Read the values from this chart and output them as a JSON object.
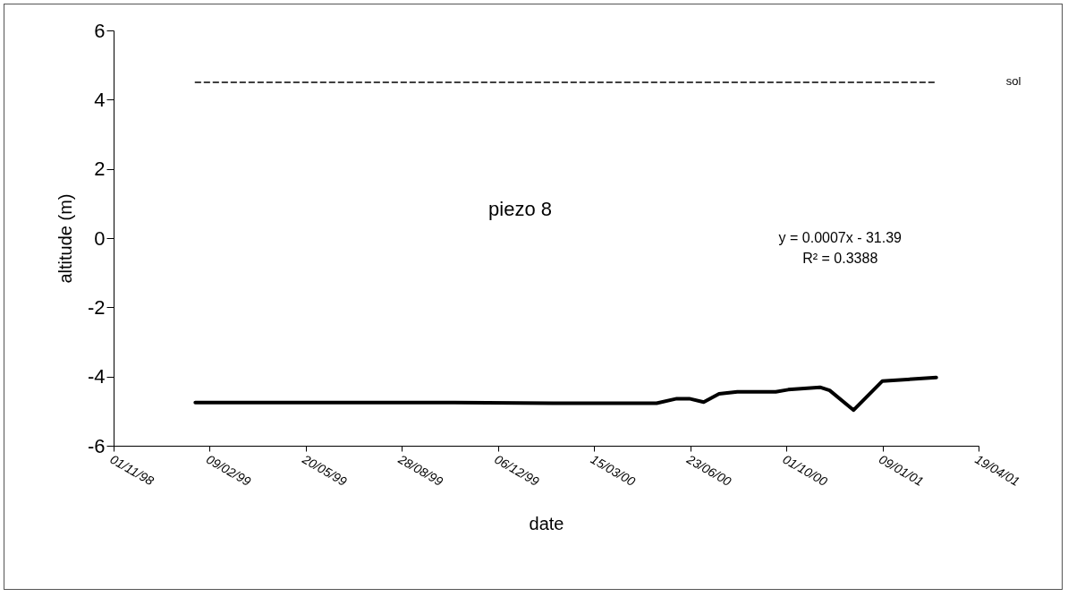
{
  "chart_data": {
    "type": "line",
    "xlabel": "date",
    "ylabel": "altitude (m)",
    "annotations": [
      "piezo 8",
      "y = 0.0007x - 31.39",
      "R² = 0.3388"
    ],
    "series": [
      {
        "name": "sol",
        "color": "#000000",
        "line_style": "dashed",
        "x": [
          "1999-01-25",
          "2001-03-06"
        ],
        "values": [
          4.5,
          4.5
        ]
      },
      {
        "color": "#000000",
        "line_style": "solid",
        "x": [
          "1999-01-25",
          "1999-06-01",
          "1999-10-01",
          "2000-02-01",
          "2000-05-19",
          "2000-06-09",
          "2000-06-22",
          "2000-07-07",
          "2000-07-23",
          "2000-08-11",
          "2000-09-20",
          "2000-10-03",
          "2000-11-05",
          "2000-11-15",
          "2000-12-10",
          "2001-01-09",
          "2001-03-06"
        ],
        "values": [
          -4.75,
          -4.75,
          -4.75,
          -4.77,
          -4.77,
          -4.64,
          -4.64,
          -4.74,
          -4.5,
          -4.44,
          -4.44,
          -4.38,
          -4.31,
          -4.4,
          -4.97,
          -4.13,
          -4.03
        ]
      }
    ],
    "xlim": [
      "1998-11-01",
      "2001-04-19"
    ],
    "xticks": [
      {
        "value": "1998-11-01",
        "label": "01/11/98"
      },
      {
        "value": "1999-02-09",
        "label": "09/02/99"
      },
      {
        "value": "1999-05-20",
        "label": "20/05/99"
      },
      {
        "value": "1999-08-28",
        "label": "28/08/99"
      },
      {
        "value": "1999-12-06",
        "label": "06/12/99"
      },
      {
        "value": "2000-03-15",
        "label": "15/03/00"
      },
      {
        "value": "2000-06-23",
        "label": "23/06/00"
      },
      {
        "value": "2000-10-01",
        "label": "01/10/00"
      },
      {
        "value": "2001-01-09",
        "label": "09/01/01"
      },
      {
        "value": "2001-04-19",
        "label": "19/04/01"
      }
    ],
    "ylim": [
      -6,
      6
    ],
    "yticks": [
      -6,
      -4,
      -2,
      0,
      2,
      4,
      6
    ],
    "grid": false,
    "legend": false,
    "marker": "none"
  }
}
